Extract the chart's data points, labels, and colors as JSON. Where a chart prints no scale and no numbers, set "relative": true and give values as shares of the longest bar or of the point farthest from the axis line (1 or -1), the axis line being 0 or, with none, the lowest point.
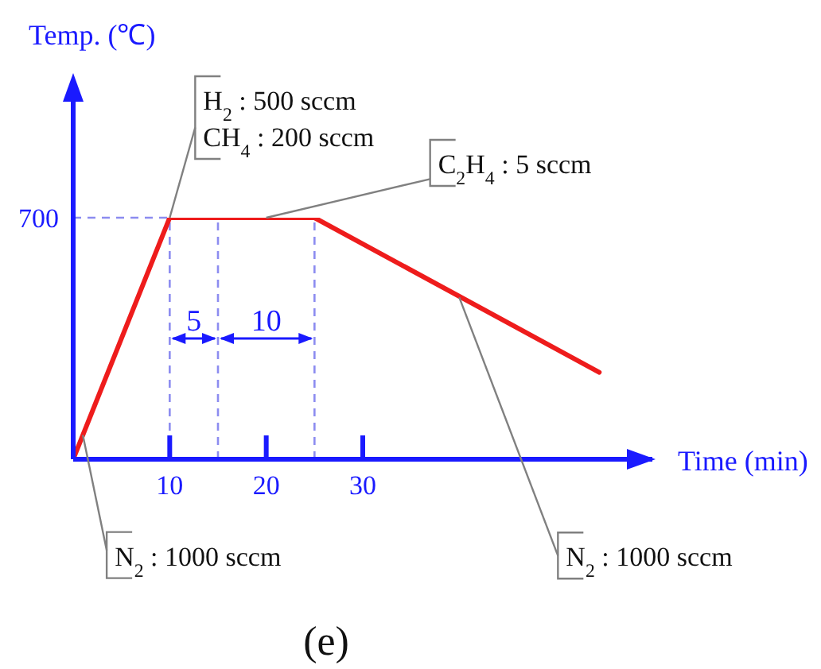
{
  "chart_data": {
    "type": "line",
    "xlabel": "Time (min)",
    "relative": true,
    "x": [
      0,
      10,
      25,
      54.5
    ],
    "series": [
      {
        "color": "#ee1c1c",
        "values": [
          0,
          1,
          1,
          0.36
        ]
      }
    ],
    "xlim": [
      0,
      60
    ],
    "xticks": [
      10,
      20,
      30
    ],
    "ref_lines": [
      {
        "axis": "x",
        "value": 10,
        "color": "#8c8cf0",
        "line_style": "dashed"
      },
      {
        "axis": "x",
        "value": 15,
        "color": "#8c8cf0",
        "line_style": "dashed"
      },
      {
        "axis": "x",
        "value": 25,
        "color": "#8c8cf0",
        "line_style": "dashed"
      },
      {
        "axis": "y",
        "value": 1,
        "color": "#8c8cf0",
        "line_style": "dashed"
      }
    ],
    "annotations": [
      {
        "text": "H$_{2}$ : 500 sccm\nCH$_{4}$ : 200 sccm",
        "x": 10,
        "y": 1
      },
      {
        "text": "C$_{2}$H$_{4}$ : 5 sccm",
        "x": 20,
        "y": 1
      },
      "5",
      "10",
      {
        "text": "N$_{2}$ : 1000 sccm",
        "x": 1,
        "y": 0.1
      },
      {
        "text": "N$_{2}$ : 1000 sccm",
        "x": 40,
        "y": 0.67
      },
      "(e)",
      {
        "text": "700",
        "x": 0,
        "y": 1
      },
      "Temp. (℃)"
    ]
  }
}
